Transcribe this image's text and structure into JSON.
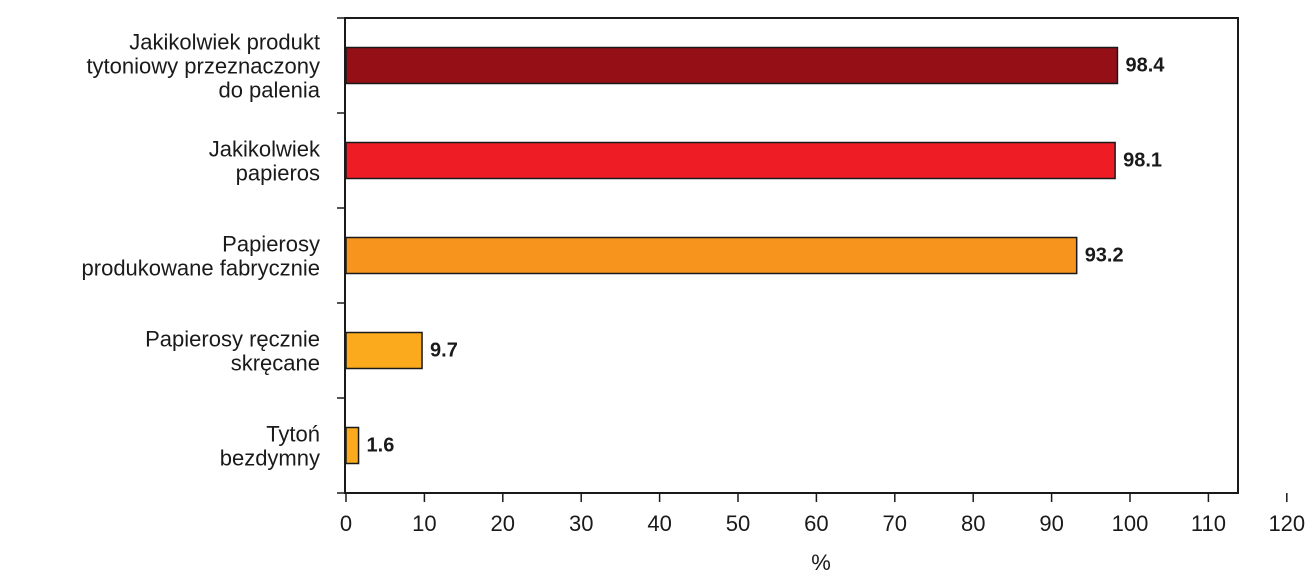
{
  "chart_data": {
    "type": "bar",
    "orientation": "horizontal",
    "categories": [
      [
        "Jakikolwiek produkt",
        "tytoniowy przeznaczony",
        "do palenia"
      ],
      [
        "Jakikolwiek",
        "papieros"
      ],
      [
        "Papierosy",
        "produkowane fabrycznie"
      ],
      [
        "Papierosy ręcznie",
        "skręcane"
      ],
      [
        "Tytoń",
        "bezdymny"
      ]
    ],
    "values": [
      98.4,
      98.1,
      93.2,
      9.7,
      1.6
    ],
    "value_labels": [
      "98.4",
      "98.1",
      "93.2",
      "9.7",
      "1.6"
    ],
    "colors": [
      "#950f16",
      "#ee1c25",
      "#f7941d",
      "#fbaa1e",
      "#fbaa1e"
    ],
    "xlabel": "%",
    "ylabel": "",
    "title": "",
    "xlim": [
      0,
      120
    ],
    "xticks": [
      0,
      10,
      20,
      30,
      40,
      50,
      60,
      70,
      80,
      90,
      100,
      110,
      120
    ],
    "grid": false,
    "legend": "none"
  }
}
